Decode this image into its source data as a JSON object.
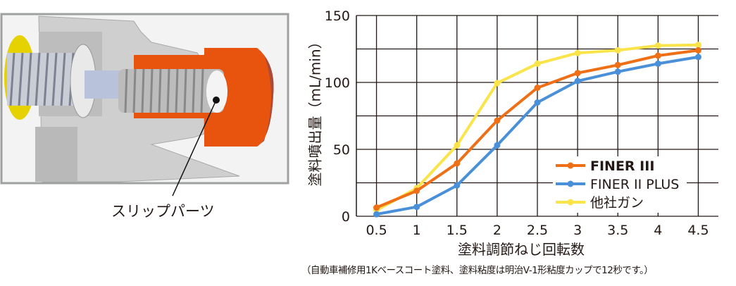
{
  "illustration": {
    "callout_label": "スリップパーツ",
    "colors": {
      "slip_part": "#E8530E",
      "body": "#C8C8C8",
      "frame": "#9FA0A0",
      "yellow_ring": "#E6D200"
    }
  },
  "chart_data": {
    "type": "line",
    "title": "",
    "xlabel": "塗料調節ねじ回転数",
    "ylabel": "塗料噴出量（mL/min）",
    "x": [
      0.5,
      1,
      1.5,
      2,
      2.5,
      3,
      3.5,
      4,
      4.5
    ],
    "x_tick_labels": [
      "0.5",
      "1",
      "1.5",
      "2",
      "2.5",
      "3",
      "3.5",
      "4",
      "4.5"
    ],
    "y_ticks": [
      0,
      50,
      100,
      150
    ],
    "y_tick_labels": [
      "0",
      "50",
      "100",
      "150"
    ],
    "ylim": [
      0,
      150
    ],
    "xlim": [
      0.25,
      4.75
    ],
    "grid": true,
    "legend_position": "bottom-right",
    "series": [
      {
        "name": "FINER III",
        "color": "#EE6F16",
        "values": [
          6.5,
          19,
          39.5,
          71.5,
          96,
          107,
          113,
          120,
          124
        ]
      },
      {
        "name": "FINER II PLUS",
        "color": "#4A90D9",
        "values": [
          1.5,
          7,
          23,
          53,
          85,
          101,
          108,
          114,
          119
        ]
      },
      {
        "name": "他社ガン",
        "color": "#FBE34A",
        "values": [
          4.5,
          21,
          53,
          99.5,
          114,
          122,
          124,
          127.5,
          128
        ]
      }
    ],
    "footnote": "（自動車補修用1Kベースコート塗料、塗料粘度は明治V-1形粘度カップで12秒です。）"
  }
}
